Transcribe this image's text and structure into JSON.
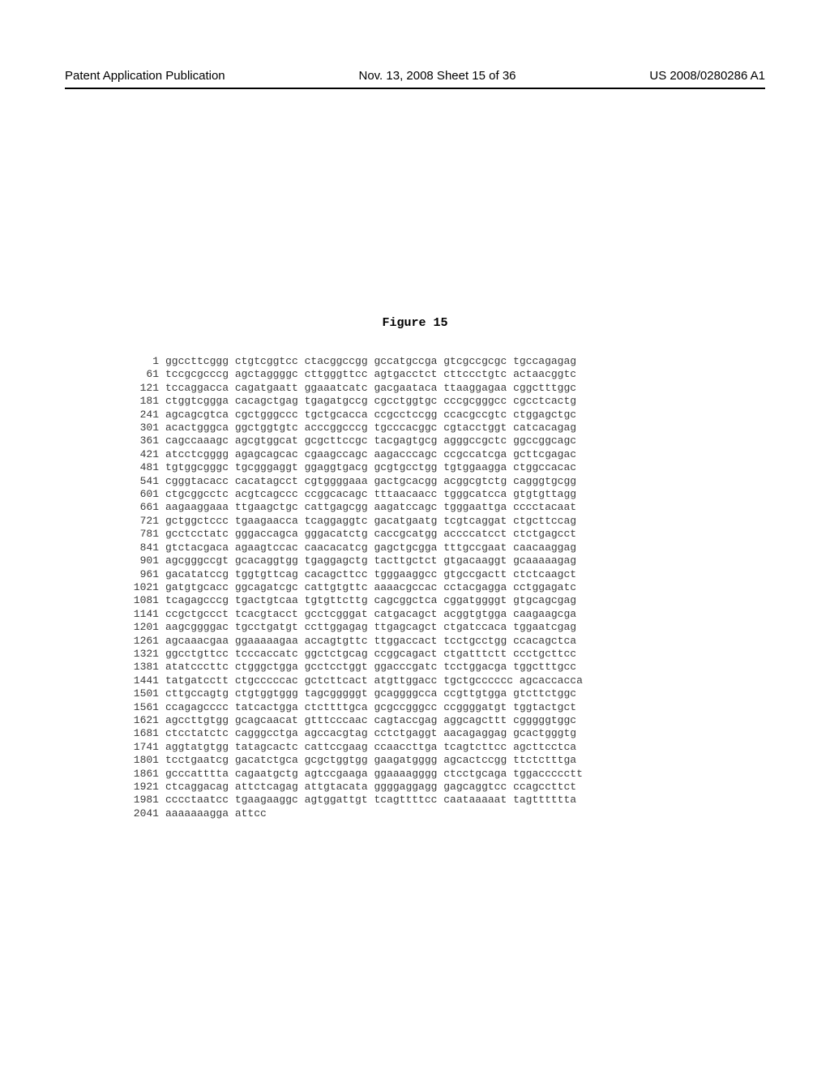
{
  "header": {
    "left": "Patent Application Publication",
    "center": "Nov. 13, 2008  Sheet 15 of 36",
    "right": "US 2008/0280286 A1"
  },
  "figure": {
    "title": "Figure 15"
  },
  "sequence": {
    "block_size": 10,
    "blocks_per_row": 6,
    "font_family": "Courier New",
    "font_size_pt": 10,
    "text_color": "#3a3a3a",
    "title_color": "#000000",
    "title_fontsize_pt": 11,
    "rows": [
      {
        "pos": 1,
        "blocks": [
          "ggccttcggg",
          "ctgtcggtcc",
          "ctacggccgg",
          "gccatgccga",
          "gtcgccgcgc",
          "tgccagagag"
        ]
      },
      {
        "pos": 61,
        "blocks": [
          "tccgcgcccg",
          "agctaggggc",
          "cttgggttcc",
          "agtgacctct",
          "cttccctgtc",
          "actaacggtc"
        ]
      },
      {
        "pos": 121,
        "blocks": [
          "tccaggacca",
          "cagatgaatt",
          "ggaaatcatc",
          "gacgaataca",
          "ttaaggagaa",
          "cggctttggc"
        ]
      },
      {
        "pos": 181,
        "blocks": [
          "ctggtcggga",
          "cacagctgag",
          "tgagatgccg",
          "cgcctggtgc",
          "cccgcgggcc",
          "cgcctcactg"
        ]
      },
      {
        "pos": 241,
        "blocks": [
          "agcagcgtca",
          "cgctgggccc",
          "tgctgcacca",
          "ccgcctccgg",
          "ccacgccgtc",
          "ctggagctgc"
        ]
      },
      {
        "pos": 301,
        "blocks": [
          "acactgggca",
          "ggctggtgtc",
          "acccggcccg",
          "tgcccacggc",
          "cgtacctggt",
          "catcacagag"
        ]
      },
      {
        "pos": 361,
        "blocks": [
          "cagccaaagc",
          "agcgtggcat",
          "gcgcttccgc",
          "tacgagtgcg",
          "agggccgctc",
          "ggccggcagc"
        ]
      },
      {
        "pos": 421,
        "blocks": [
          "atcctcgggg",
          "agagcagcac",
          "cgaagccagc",
          "aagacccagc",
          "ccgccatcga",
          "gcttcgagac"
        ]
      },
      {
        "pos": 481,
        "blocks": [
          "tgtggcgggc",
          "tgcgggaggt",
          "ggaggtgacg",
          "gcgtgcctgg",
          "tgtggaagga",
          "ctggccacac"
        ]
      },
      {
        "pos": 541,
        "blocks": [
          "cgggtacacc",
          "cacatagcct",
          "cgtggggaaa",
          "gactgcacgg",
          "acggcgtctg",
          "cagggtgcgg"
        ]
      },
      {
        "pos": 601,
        "blocks": [
          "ctgcggcctc",
          "acgtcagccc",
          "ccggcacagc",
          "tttaacaacc",
          "tgggcatcca",
          "gtgtgttagg"
        ]
      },
      {
        "pos": 661,
        "blocks": [
          "aagaaggaaa",
          "ttgaagctgc",
          "cattgagcgg",
          "aagatccagc",
          "tgggaattga",
          "cccctacaat"
        ]
      },
      {
        "pos": 721,
        "blocks": [
          "gctggctccc",
          "tgaagaacca",
          "tcaggaggtc",
          "gacatgaatg",
          "tcgtcaggat",
          "ctgcttccag"
        ]
      },
      {
        "pos": 781,
        "blocks": [
          "gcctcctatc",
          "gggaccagca",
          "gggacatctg",
          "caccgcatgg",
          "accccatcct",
          "ctctgagcct"
        ]
      },
      {
        "pos": 841,
        "blocks": [
          "gtctacgaca",
          "agaagtccac",
          "caacacatcg",
          "gagctgcgga",
          "tttgccgaat",
          "caacaaggag"
        ]
      },
      {
        "pos": 901,
        "blocks": [
          "agcgggccgt",
          "gcacaggtgg",
          "tgaggagctg",
          "tacttgctct",
          "gtgacaaggt",
          "gcaaaaagag"
        ]
      },
      {
        "pos": 961,
        "blocks": [
          "gacatatccg",
          "tggtgttcag",
          "cacagcttcc",
          "tgggaaggcc",
          "gtgccgactt",
          "ctctcaagct"
        ]
      },
      {
        "pos": 1021,
        "blocks": [
          "gatgtgcacc",
          "ggcagatcgc",
          "cattgtgttc",
          "aaaacgccac",
          "cctacgagga",
          "cctggagatc"
        ]
      },
      {
        "pos": 1081,
        "blocks": [
          "tcagagcccg",
          "tgactgtcaa",
          "tgtgttcttg",
          "cagcggctca",
          "cggatggggt",
          "gtgcagcgag"
        ]
      },
      {
        "pos": 1141,
        "blocks": [
          "ccgctgccct",
          "tcacgtacct",
          "gcctcgggat",
          "catgacagct",
          "acggtgtgga",
          "caagaagcga"
        ]
      },
      {
        "pos": 1201,
        "blocks": [
          "aagcggggac",
          "tgcctgatgt",
          "ccttggagag",
          "ttgagcagct",
          "ctgatccaca",
          "tggaatcgag"
        ]
      },
      {
        "pos": 1261,
        "blocks": [
          "agcaaacgaa",
          "ggaaaaagaa",
          "accagtgttc",
          "ttggaccact",
          "tcctgcctgg",
          "ccacagctca"
        ]
      },
      {
        "pos": 1321,
        "blocks": [
          "ggcctgttcc",
          "tcccaccatc",
          "ggctctgcag",
          "ccggcagact",
          "ctgatttctt",
          "ccctgcttcc"
        ]
      },
      {
        "pos": 1381,
        "blocks": [
          "atatcccttc",
          "ctgggctgga",
          "gcctcctggt",
          "ggacccgatc",
          "tcctggacga",
          "tggctttgcc"
        ]
      },
      {
        "pos": 1441,
        "blocks": [
          "tatgatcctt",
          "ctgcccccac",
          "gctcttcact",
          "atgttggacc",
          "tgctgcccccc",
          "agcaccacca"
        ]
      },
      {
        "pos": 1501,
        "blocks": [
          "cttgccagtg",
          "ctgtggtggg",
          "tagcgggggt",
          "gcaggggcca",
          "ccgttgtgga",
          "gtcttctggc"
        ]
      },
      {
        "pos": 1561,
        "blocks": [
          "ccagagcccc",
          "tatcactgga",
          "ctcttttgca",
          "gcgccgggcc",
          "ccggggatgt",
          "tggtactgct"
        ]
      },
      {
        "pos": 1621,
        "blocks": [
          "agccttgtgg",
          "gcagcaacat",
          "gtttcccaac",
          "cagtaccgag",
          "aggcagcttt",
          "cgggggtggc"
        ]
      },
      {
        "pos": 1681,
        "blocks": [
          "ctcctatctc",
          "cagggcctga",
          "agccacgtag",
          "cctctgaggt",
          "aacagaggag",
          "gcactgggtg"
        ]
      },
      {
        "pos": 1741,
        "blocks": [
          "aggtatgtgg",
          "tatagcactc",
          "cattccgaag",
          "ccaaccttga",
          "tcagtcttcc",
          "agcttcctca"
        ]
      },
      {
        "pos": 1801,
        "blocks": [
          "tcctgaatcg",
          "gacatctgca",
          "gcgctggtgg",
          "gaagatgggg",
          "agcactccgg",
          "ttctctttga"
        ]
      },
      {
        "pos": 1861,
        "blocks": [
          "gcccatttta",
          "cagaatgctg",
          "agtccgaaga",
          "ggaaaagggg",
          "ctcctgcaga",
          "tggaccccctt"
        ]
      },
      {
        "pos": 1921,
        "blocks": [
          "ctcaggacag",
          "attctcagag",
          "attgtacata",
          "ggggaggagg",
          "gagcaggtcc",
          "ccagccttct"
        ]
      },
      {
        "pos": 1981,
        "blocks": [
          "cccctaatcc",
          "tgaagaaggc",
          "agtggattgt",
          "tcagttttcc",
          "caataaaaat",
          "tagtttttta"
        ]
      },
      {
        "pos": 2041,
        "blocks": [
          "aaaaaaagga",
          "attcc",
          "",
          "",
          "",
          ""
        ]
      }
    ]
  }
}
